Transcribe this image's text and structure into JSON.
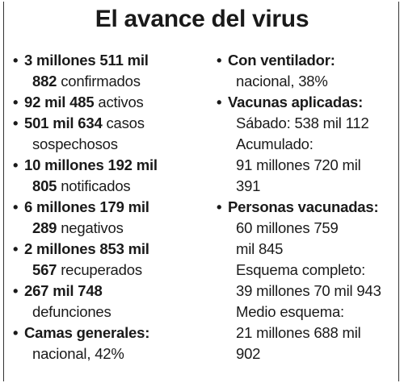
{
  "title": "El avance del virus",
  "left_column": [
    {
      "lines": [
        {
          "bold": "3 millones 511 mil",
          "text": ""
        },
        {
          "bold": "882",
          "text": " confirmados"
        }
      ]
    },
    {
      "lines": [
        {
          "bold": "92 mil 485",
          "text": " activos"
        }
      ]
    },
    {
      "lines": [
        {
          "bold": "501 mil 634",
          "text": " casos"
        },
        {
          "bold": "",
          "text": "sospechosos"
        }
      ]
    },
    {
      "lines": [
        {
          "bold": "10 millones 192 mil",
          "text": ""
        },
        {
          "bold": "805",
          "text": " notificados"
        }
      ]
    },
    {
      "lines": [
        {
          "bold": "6 millones 179 mil",
          "text": ""
        },
        {
          "bold": "289",
          "text": " negativos"
        }
      ]
    },
    {
      "lines": [
        {
          "bold": "2 millones 853 mil",
          "text": ""
        },
        {
          "bold": "567",
          "text": " recuperados"
        }
      ]
    },
    {
      "lines": [
        {
          "bold": "267 mil 748",
          "text": ""
        },
        {
          "bold": "",
          "text": "defunciones"
        }
      ]
    },
    {
      "lines": [
        {
          "bold": "Camas generales:",
          "text": ""
        },
        {
          "bold": "",
          "text": "nacional, 42%"
        }
      ]
    }
  ],
  "right_column": [
    {
      "lines": [
        {
          "bold": "Con ventilador:",
          "text": ""
        },
        {
          "bold": "",
          "text": "nacional, 38%"
        }
      ]
    },
    {
      "lines": [
        {
          "bold": "Vacunas aplicadas:",
          "text": ""
        },
        {
          "bold": "",
          "text": "Sábado: 538 mil 112"
        },
        {
          "bold": "",
          "text": "Acumulado:"
        },
        {
          "bold": "",
          "text": "91 millones 720 mil"
        },
        {
          "bold": "",
          "text": "391"
        }
      ]
    },
    {
      "lines": [
        {
          "bold": "Personas vacunadas:",
          "text": ""
        },
        {
          "bold": "",
          "text": "60 millones 759"
        },
        {
          "bold": "",
          "text": "mil 845"
        },
        {
          "bold": "",
          "text": "Esquema completo:"
        },
        {
          "bold": "",
          "text": "39 millones 70 mil 943"
        },
        {
          "bold": "",
          "text": "Medio esquema:"
        },
        {
          "bold": "",
          "text": "21 millones 688 mil"
        },
        {
          "bold": "",
          "text": "902"
        }
      ]
    }
  ]
}
